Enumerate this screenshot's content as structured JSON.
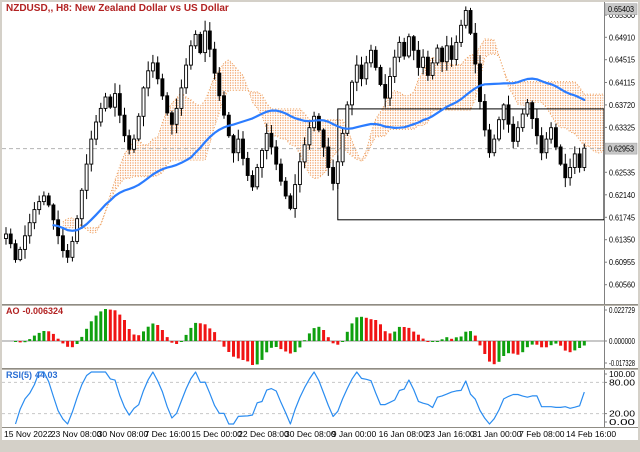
{
  "header": {
    "title": "NZDUSD,, H8: New Zealand Dollar vs US Dollar",
    "title_color": "#b22222"
  },
  "chart_data": {
    "type": "candlestick",
    "title": "NZDUSD H8",
    "y_range": [
      0.6022,
      0.6553
    ],
    "price_tick_labels": [
      "0.65300",
      "0.64910",
      "0.64515",
      "0.64115",
      "0.63720",
      "0.63325",
      "0.62930",
      "0.62535",
      "0.62140",
      "0.61745",
      "0.61350",
      "0.60955",
      "0.60560"
    ],
    "x_tick_labels": [
      "15 Nov 2022",
      "23 Nov 08:00",
      "30 Nov 08:00",
      "7 Dec 16:00",
      "15 Dec 00:00",
      "22 Dec 08:00",
      "30 Dec 08:00",
      "9 Jan 00:00",
      "16 Jan 08:00",
      "23 Jan 16:00",
      "31 Jan 00:00",
      "7 Feb 08:00",
      "14 Feb 16:00"
    ],
    "closes": [
      0.6145,
      0.6128,
      0.61,
      0.6118,
      0.6142,
      0.6165,
      0.6188,
      0.6202,
      0.6212,
      0.6196,
      0.617,
      0.6142,
      0.6116,
      0.6104,
      0.6132,
      0.6172,
      0.6222,
      0.6268,
      0.6312,
      0.6342,
      0.6366,
      0.6386,
      0.6368,
      0.6392,
      0.6354,
      0.6318,
      0.6294,
      0.6312,
      0.6352,
      0.6402,
      0.6432,
      0.6446,
      0.6418,
      0.6388,
      0.6358,
      0.6338,
      0.6366,
      0.6402,
      0.6442,
      0.6476,
      0.6496,
      0.6464,
      0.6502,
      0.647,
      0.6428,
      0.6388,
      0.6354,
      0.6318,
      0.6288,
      0.6312,
      0.6278,
      0.6248,
      0.6228,
      0.6262,
      0.6292,
      0.6322,
      0.6298,
      0.6268,
      0.6238,
      0.6212,
      0.619,
      0.6232,
      0.6272,
      0.6302,
      0.6332,
      0.6352,
      0.6328,
      0.6298,
      0.6262,
      0.6234,
      0.6272,
      0.6322,
      0.6372,
      0.6412,
      0.6442,
      0.6418,
      0.6446,
      0.6468,
      0.6438,
      0.6408,
      0.6384,
      0.6422,
      0.6456,
      0.6482,
      0.6458,
      0.6492,
      0.6468,
      0.6438,
      0.6456,
      0.6424,
      0.6446,
      0.6472,
      0.6448,
      0.6476,
      0.6452,
      0.6482,
      0.6512,
      0.6538,
      0.6498,
      0.6444,
      0.6378,
      0.6328,
      0.6288,
      0.6312,
      0.6346,
      0.6372,
      0.6338,
      0.6308,
      0.6332,
      0.6356,
      0.6376,
      0.6348,
      0.6318,
      0.6288,
      0.6312,
      0.6332,
      0.6298,
      0.6268,
      0.6244,
      0.6262,
      0.6286,
      0.6262,
      0.6296
    ],
    "current_price": 0.62953,
    "price_marker": 0.65403,
    "candle_up_color": "#ffffff",
    "candle_down_color": "#000000",
    "candle_border_color": "#000000",
    "overlays": {
      "moving_average": {
        "window": 40,
        "color": "#2b7cff"
      },
      "ichimoku_cloud": {
        "tenkan": 5,
        "kijun": 13,
        "senkou_b": 26,
        "shift": 4,
        "color": "#f2a36a",
        "edge_color": "#eda05e"
      }
    },
    "rectangle_object": {
      "from_index": 70,
      "price_top": 0.6365,
      "price_bottom": 0.617,
      "color": "#000000"
    },
    "indicators": [
      {
        "name": "AO",
        "value_text": "-0.006324",
        "type": "histogram",
        "fast": 3,
        "slow": 16,
        "scale_max": 0.024,
        "scale_min": -0.0185,
        "axis_labels": [
          "0.022729",
          "0.000000",
          "-0.017328"
        ],
        "up_color": "#0fa00f",
        "down_color": "#f01414",
        "label_color": "#b22222"
      },
      {
        "name": "RSI(5)",
        "value_text": "44.03",
        "type": "line",
        "period": 5,
        "range": [
          0,
          100
        ],
        "levels": [
          80,
          20
        ],
        "axis_labels": [
          "100.00",
          "80.00",
          "20.00",
          "0.00"
        ],
        "color": "#2a8cf0",
        "label_color": "#2a6fd4"
      }
    ]
  }
}
